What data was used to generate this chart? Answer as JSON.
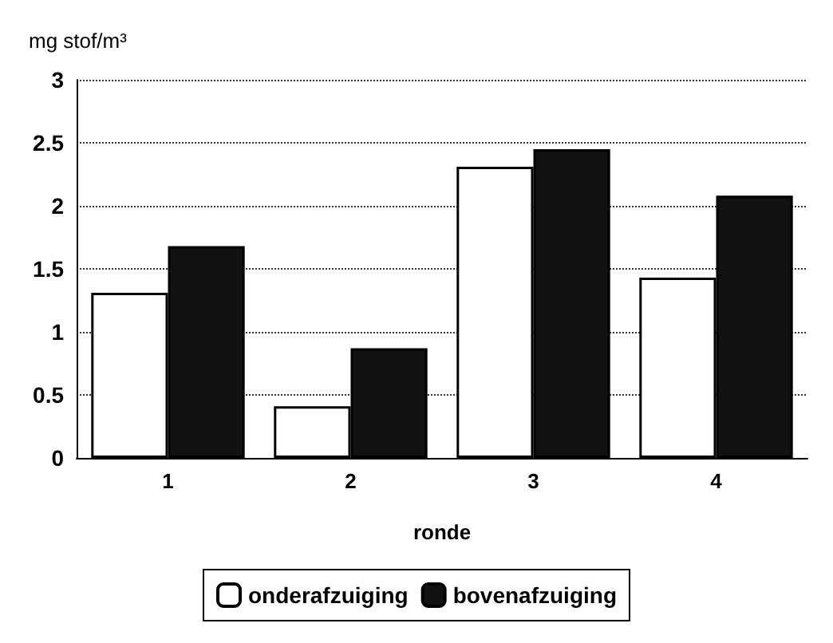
{
  "chart_data": {
    "type": "bar",
    "ylabel": "mg stof/m³",
    "xlabel": "ronde",
    "categories": [
      "1",
      "2",
      "3",
      "4"
    ],
    "series": [
      {
        "name": "onderafzuiging",
        "color": "#ffffff",
        "values": [
          1.31,
          0.41,
          2.31,
          1.43
        ]
      },
      {
        "name": "bovenafzuiging",
        "color": "#111111",
        "values": [
          1.68,
          0.87,
          2.45,
          2.08
        ]
      }
    ],
    "ylim": [
      0,
      3
    ],
    "yticks": [
      0,
      0.5,
      1,
      1.5,
      2,
      2.5,
      3
    ],
    "grid": "y",
    "legend": "bottom"
  }
}
